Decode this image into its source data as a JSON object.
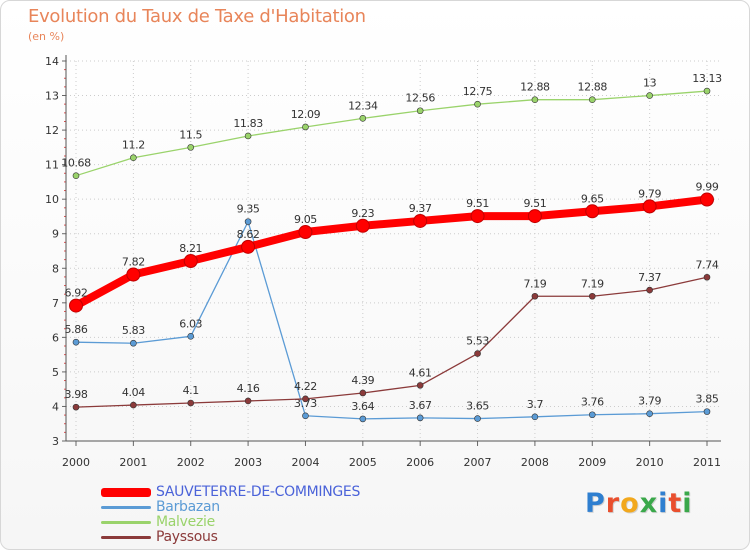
{
  "header": {
    "title": "Evolution du Taux de Taxe d'Habitation",
    "subtitle": "(en %)"
  },
  "logo": {
    "text": "Proxiti",
    "colors": [
      "#2f7fd0",
      "#e94f2e",
      "#f2a81d",
      "#3aa84a",
      "#2f7fd0",
      "#e94f2e",
      "#3aa84a"
    ]
  },
  "chart_data": {
    "type": "line",
    "title": "Evolution du Taux de Taxe d'Habitation",
    "subtitle": "(en %)",
    "xlabel": "",
    "ylabel": "",
    "ylim": [
      3,
      14
    ],
    "y_ticks": [
      "3",
      "4",
      "5",
      "6",
      "7",
      "8",
      "9",
      "10",
      "11",
      "12",
      "13",
      "14"
    ],
    "categories": [
      "2000",
      "2001",
      "2002",
      "2003",
      "2004",
      "2005",
      "2006",
      "2007",
      "2008",
      "2009",
      "2010",
      "2011"
    ],
    "grid": true,
    "legend_position": "bottom-left",
    "series": [
      {
        "name": "SAUVETERRE-DE-COMMINGES",
        "color": "#ff0000",
        "emphasis": true,
        "values": [
          6.92,
          7.82,
          8.21,
          8.62,
          9.05,
          9.23,
          9.37,
          9.51,
          9.51,
          9.65,
          9.79,
          9.99
        ],
        "labels": [
          "6.92",
          "7.82",
          "8.21",
          "8.62",
          "9.05",
          "9.23",
          "9.37",
          "9.51",
          "9.51",
          "9.65",
          "9.79",
          "9.99"
        ]
      },
      {
        "name": "Barbazan",
        "color": "#5b9bd5",
        "emphasis": false,
        "values": [
          5.86,
          5.83,
          6.03,
          9.35,
          3.73,
          3.64,
          3.67,
          3.65,
          3.7,
          3.76,
          3.79,
          3.85
        ],
        "labels": [
          "5.86",
          "5.83",
          "6.03",
          "9.35",
          "3.73",
          "3.64",
          "3.67",
          "3.65",
          "3.7",
          "3.76",
          "3.79",
          "3.85"
        ]
      },
      {
        "name": "Malvezie",
        "color": "#9ad36b",
        "emphasis": false,
        "values": [
          10.68,
          11.2,
          11.5,
          11.83,
          12.09,
          12.34,
          12.56,
          12.75,
          12.88,
          12.88,
          13.0,
          13.13
        ],
        "labels": [
          "10.68",
          "11.2",
          "11.5",
          "11.83",
          "12.09",
          "12.34",
          "12.56",
          "12.75",
          "12.88",
          "12.88",
          "13",
          "13.13"
        ]
      },
      {
        "name": "Payssous",
        "color": "#8b3a3a",
        "emphasis": false,
        "values": [
          3.98,
          4.04,
          4.1,
          4.16,
          4.22,
          4.39,
          4.61,
          5.53,
          7.19,
          7.19,
          7.37,
          7.74
        ],
        "labels": [
          "3.98",
          "4.04",
          "4.1",
          "4.16",
          "4.22",
          "4.39",
          "4.61",
          "5.53",
          "7.19",
          "7.19",
          "7.37",
          "7.74"
        ]
      }
    ]
  }
}
